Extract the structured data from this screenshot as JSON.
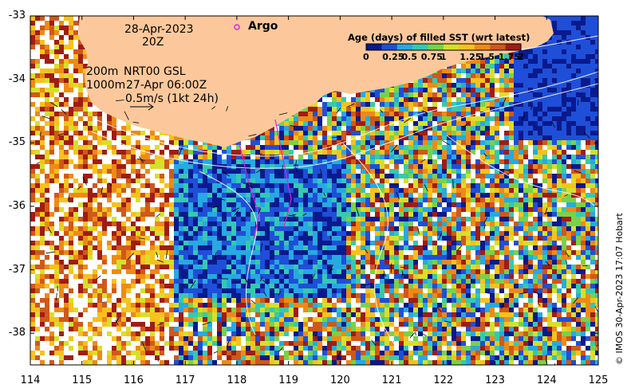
{
  "map": {
    "date": "28-Apr-2023",
    "hour": "20Z",
    "argo_label": "Argo",
    "legend_depth_200": "200m",
    "legend_depth_1000": "1000m",
    "legend_source": "NRT00 GSL",
    "legend_time": "27-Apr 06:00Z",
    "vector_scale": "0.5m/s (1kt 24h)",
    "credit": "© IMOS 30-Apr-2023 17:07 Hobart",
    "x_ticks": [
      "114",
      "115",
      "116",
      "117",
      "118",
      "119",
      "120",
      "121",
      "122",
      "123",
      "124",
      "125"
    ],
    "y_ticks": [
      "-33",
      "-34",
      "-35",
      "-36",
      "-37",
      "-38"
    ],
    "land_color": "#fcc89b",
    "argo_color": "#e020e0"
  },
  "colorbar": {
    "title": "Age (days) of filled SST (wrt latest)",
    "labels": [
      "0",
      "0.25",
      "0.5",
      "0.75",
      "1",
      "1.25",
      "1.5",
      "1.75",
      "2"
    ],
    "colors": [
      "#0a1a8c",
      "#1f4fd8",
      "#27a9e1",
      "#35c9b0",
      "#78d24a",
      "#d6e02a",
      "#f6c21c",
      "#ee8a17",
      "#d0581a",
      "#a01c14"
    ]
  }
}
